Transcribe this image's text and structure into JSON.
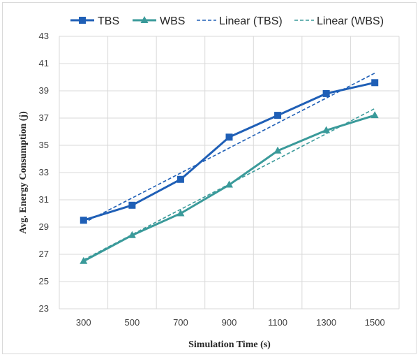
{
  "chart_data": {
    "type": "line",
    "x": [
      300,
      500,
      700,
      900,
      1100,
      1300,
      1500
    ],
    "xlabel": "Simulation Time (s)",
    "ylabel": "Avg. Energy Consumption (j)",
    "ylim": [
      23,
      43
    ],
    "yticks": [
      23,
      25,
      27,
      29,
      31,
      33,
      35,
      37,
      39,
      41,
      43
    ],
    "grid": true,
    "legend_position": "top",
    "series": [
      {
        "name": "TBS",
        "values": [
          29.5,
          30.6,
          32.5,
          35.6,
          37.2,
          38.8,
          39.6
        ],
        "color": "#1f5fb6",
        "marker": "square"
      },
      {
        "name": "WBS",
        "values": [
          26.5,
          28.4,
          30.0,
          32.1,
          34.6,
          36.1,
          37.2
        ],
        "color": "#3a9a9a",
        "marker": "triangle"
      }
    ],
    "trendlines": [
      {
        "name": "Linear (TBS)",
        "start": 29.3,
        "end": 40.3,
        "color": "#1f5fb6"
      },
      {
        "name": "Linear (WBS)",
        "start": 26.6,
        "end": 37.7,
        "color": "#3a9a9a"
      }
    ]
  }
}
